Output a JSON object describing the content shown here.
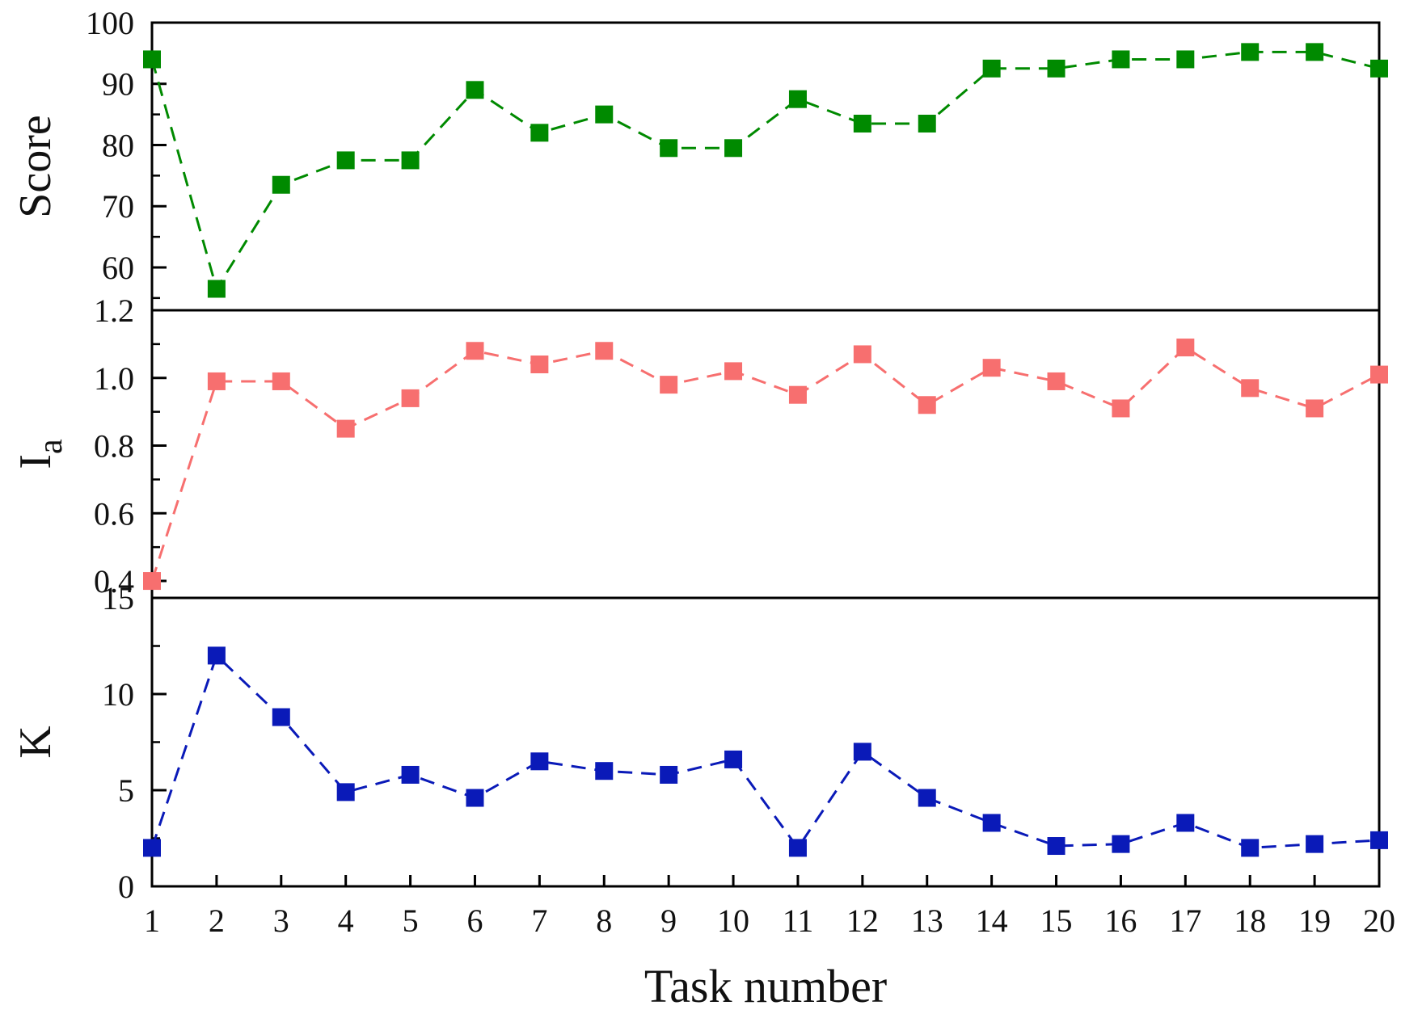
{
  "chart_data": {
    "type": "line",
    "xlabel": "Task number",
    "x": [
      1,
      2,
      3,
      4,
      5,
      6,
      7,
      8,
      9,
      10,
      11,
      12,
      13,
      14,
      15,
      16,
      17,
      18,
      19,
      20
    ],
    "x_ticks": [
      "1",
      "2",
      "3",
      "4",
      "5",
      "6",
      "7",
      "8",
      "9",
      "10",
      "11",
      "12",
      "13",
      "14",
      "15",
      "16",
      "17",
      "18",
      "19",
      "20"
    ],
    "xlim": [
      1,
      20
    ],
    "panels": [
      {
        "ylabel": "Score",
        "ylim": [
          53,
          100
        ],
        "yticks": [
          "60",
          "70",
          "80",
          "90",
          "100"
        ],
        "ytick_values": [
          60,
          70,
          80,
          90,
          100
        ],
        "minor_step": 5,
        "color": "#008a00",
        "values": [
          94,
          56.5,
          73.5,
          77.5,
          77.5,
          89,
          82,
          85,
          79.5,
          79.5,
          87.5,
          83.5,
          83.5,
          92.5,
          92.5,
          94,
          94,
          95.2,
          95.2,
          92.5
        ]
      },
      {
        "ylabel_main": "I",
        "ylabel_sub": "a",
        "ylim": [
          0.35,
          1.2
        ],
        "yticks": [
          "0.4",
          "0.6",
          "0.8",
          "1.0",
          "1.2"
        ],
        "ytick_values": [
          0.4,
          0.6,
          0.8,
          1.0,
          1.2
        ],
        "minor_step": 0.1,
        "color": "#f76f6f",
        "values": [
          0.4,
          0.99,
          0.99,
          0.85,
          0.94,
          1.08,
          1.04,
          1.08,
          0.98,
          1.02,
          0.95,
          1.07,
          0.92,
          1.03,
          0.99,
          0.91,
          1.09,
          0.97,
          0.91,
          1.01
        ]
      },
      {
        "ylabel": "K",
        "ylim": [
          0,
          15
        ],
        "yticks": [
          "0",
          "5",
          "10",
          "15"
        ],
        "ytick_values": [
          0,
          5,
          10,
          15
        ],
        "minor_step": 2.5,
        "color": "#0a1ab8",
        "values": [
          2,
          12,
          8.8,
          4.9,
          5.8,
          4.6,
          6.5,
          6,
          5.8,
          6.6,
          2,
          7,
          4.6,
          3.3,
          2.1,
          2.2,
          3.3,
          2,
          2.2,
          2.4
        ]
      }
    ]
  }
}
